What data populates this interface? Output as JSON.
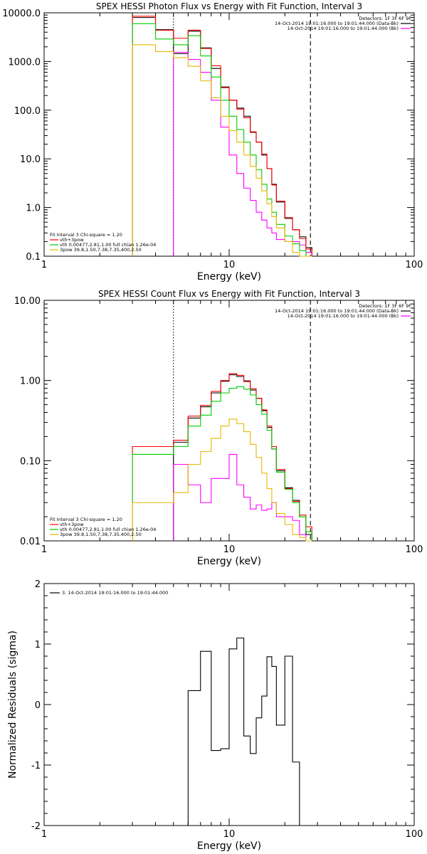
{
  "chart_data": [
    {
      "type": "line",
      "title": "SPEX HESSI Photon Flux vs Energy with Fit Function, Interval 3",
      "xlabel": "Energy (keV)",
      "ylabel": "",
      "xscale": "log",
      "yscale": "log",
      "xlim": [
        1,
        100
      ],
      "ylim": [
        0.1,
        10000
      ],
      "xticks": [
        {
          "v": 1,
          "label": "1"
        },
        {
          "v": 10,
          "label": "10"
        },
        {
          "v": 100,
          "label": "100"
        }
      ],
      "yticks": [
        {
          "v": 0.1,
          "label": "0.1"
        },
        {
          "v": 1,
          "label": "1.0"
        },
        {
          "v": 10,
          "label": "10.0"
        },
        {
          "v": 100,
          "label": "100.0"
        },
        {
          "v": 1000,
          "label": "1000.0"
        },
        {
          "v": 10000,
          "label": "10000.0"
        }
      ],
      "vlines": [
        {
          "x": 5.0,
          "style": "dotted"
        },
        {
          "x": 27.5,
          "style": "dashed"
        }
      ],
      "legend_topright": [
        "Detectors: 1F 3F 6F 9F",
        "14-Oct-2014 19:01:16.000 to 19:01:44.000 (Data-Bk)",
        "14-Oct-2014 19:01:16.000 to 19:01:44.000 (Bk)"
      ],
      "legend_bottomleft": [
        "Fit Interval 3   Chi-square = 1.20",
        "vth+3pow",
        "vth 0.00477,2.81,1.00  full chian 1.26e-04",
        "3pow 39.8,1.50,7.38,7.35,400,2.50"
      ],
      "series": [
        {
          "name": "14-Oct-2014 19:01:16.000 to 19:01:44.000 (Data-Bk)",
          "color": "#000000",
          "edges": [
            3,
            4,
            5,
            6,
            7,
            8,
            9,
            10,
            11,
            12,
            13,
            14,
            15,
            16,
            17,
            18,
            20,
            22,
            24,
            26,
            28
          ],
          "values": [
            8000,
            4500,
            1450,
            4200,
            1900,
            720,
            300,
            160,
            110,
            75,
            35,
            22,
            12,
            6.3,
            3.0,
            1.3,
            0.6,
            0.35,
            0.25,
            0.15
          ]
        },
        {
          "name": "14-Oct-2014 19:01:16.000 to 19:01:44.000 (Bk)",
          "color": "#ff00ff",
          "edges": [
            5,
            6,
            7,
            8,
            9,
            10,
            11,
            12,
            13,
            14,
            15,
            16,
            17,
            18,
            20,
            22,
            24,
            26,
            28
          ],
          "values": [
            1550,
            1100,
            600,
            160,
            45,
            12,
            5,
            2.5,
            1.4,
            0.8,
            0.55,
            0.38,
            0.3,
            0.22,
            0.2,
            0.2,
            0.17,
            0.12
          ]
        },
        {
          "name": "vth+3pow",
          "color": "#ff0000",
          "edges": [
            3,
            4,
            5,
            6,
            7,
            8,
            9,
            10,
            11,
            12,
            13,
            14,
            15,
            16,
            17,
            18,
            20,
            22,
            24,
            26,
            28
          ],
          "values": [
            8500,
            4400,
            3000,
            4400,
            1850,
            820,
            290,
            160,
            105,
            70,
            36,
            22,
            12.5,
            6.3,
            2.9,
            1.35,
            0.62,
            0.35,
            0.23,
            0.14
          ]
        },
        {
          "name": "vth 0.00477,2.81,1.00  full chian 1.26e-04",
          "color": "#00cc00",
          "edges": [
            3,
            4,
            5,
            6,
            7,
            8,
            9,
            10,
            11,
            12,
            13,
            14,
            15,
            16,
            17,
            18,
            20,
            22,
            24,
            26,
            28
          ],
          "values": [
            6000,
            2900,
            2200,
            3400,
            1300,
            480,
            160,
            75,
            40,
            22,
            12,
            6,
            3.0,
            1.5,
            0.8,
            0.45,
            0.26,
            0.18,
            0.13,
            0.1
          ]
        },
        {
          "name": "3pow 39.8,1.50,7.38,7.35,400,2.50",
          "color": "#e6b800",
          "edges": [
            3,
            4,
            5,
            6,
            7,
            8,
            9,
            10,
            11,
            12,
            13,
            14,
            15,
            16,
            17,
            18,
            20,
            22,
            24,
            26,
            28
          ],
          "values": [
            2200,
            1600,
            1200,
            800,
            400,
            180,
            75,
            38,
            22,
            12,
            7,
            4,
            2.2,
            1.2,
            0.65,
            0.38,
            0.2,
            0.12,
            0.1,
            0.1
          ]
        }
      ]
    },
    {
      "type": "line",
      "title": "SPEX HESSI Count Flux vs Energy with Fit Function, Interval 3",
      "xlabel": "Energy (keV)",
      "ylabel": "",
      "xscale": "log",
      "yscale": "log",
      "xlim": [
        1,
        100
      ],
      "ylim": [
        0.01,
        10
      ],
      "xticks": [
        {
          "v": 1,
          "label": "1"
        },
        {
          "v": 10,
          "label": "10"
        },
        {
          "v": 100,
          "label": "100"
        }
      ],
      "yticks": [
        {
          "v": 0.01,
          "label": "0.01"
        },
        {
          "v": 0.1,
          "label": "0.10"
        },
        {
          "v": 1,
          "label": "1.00"
        },
        {
          "v": 10,
          "label": "10.00"
        }
      ],
      "vlines": [
        {
          "x": 5.0,
          "style": "dotted"
        },
        {
          "x": 27.5,
          "style": "dashed"
        }
      ],
      "legend_topright": [
        "Detectors: 1F 3F 6F 9F",
        "14-Oct-2014 19:01:16.000 to 19:01:44.000 (Data-Bk)",
        "14-Oct-2014 19:01:16.000 to 19:01:44.000 (Bk)"
      ],
      "legend_bottomleft": [
        "Fit Interval 3   Chi-square = 1.20",
        "vth+3pow",
        "vth 0.00477,2.81,1.00  full chian 1.26e-04",
        "3pow 39.8,1.50,7.38,7.35,400,2.50"
      ],
      "series": [
        {
          "name": "14-Oct-2014 19:01:16.000 to 19:01:44.000 (Data-Bk)",
          "color": "#000000",
          "edges": [
            5,
            6,
            7,
            8,
            9,
            10,
            11,
            12,
            13,
            14,
            15,
            16,
            17,
            18,
            20,
            22,
            24,
            26,
            28
          ],
          "values": [
            0.17,
            0.34,
            0.47,
            0.7,
            0.98,
            1.18,
            1.12,
            0.99,
            0.76,
            0.6,
            0.42,
            0.26,
            0.14,
            0.075,
            0.046,
            0.032,
            0.02,
            0.012
          ]
        },
        {
          "name": "14-Oct-2014 19:01:16.000 to 19:01:44.000 (Bk)",
          "color": "#ff00ff",
          "edges": [
            5,
            6,
            7,
            8,
            9,
            10,
            11,
            12,
            13,
            14,
            15,
            16,
            17,
            18,
            20,
            22,
            24,
            26,
            28
          ],
          "values": [
            0.09,
            0.05,
            0.03,
            0.06,
            0.06,
            0.12,
            0.05,
            0.035,
            0.025,
            0.028,
            0.024,
            0.025,
            0.03,
            0.02,
            0.02,
            0.018,
            0.012,
            0.01
          ]
        },
        {
          "name": "vth+3pow",
          "color": "#ff0000",
          "edges": [
            3,
            5,
            6,
            7,
            8,
            9,
            10,
            11,
            12,
            13,
            14,
            15,
            16,
            17,
            18,
            20,
            22,
            24,
            26,
            28
          ],
          "values": [
            0.15,
            0.18,
            0.36,
            0.49,
            0.73,
            1.0,
            1.22,
            1.16,
            0.97,
            0.79,
            0.6,
            0.43,
            0.27,
            0.15,
            0.078,
            0.045,
            0.031,
            0.021,
            0.015
          ]
        },
        {
          "name": "vth 0.00477,2.81,1.00  full chian 1.26e-04",
          "color": "#00cc00",
          "edges": [
            3,
            5,
            6,
            7,
            8,
            9,
            10,
            11,
            12,
            13,
            14,
            15,
            16,
            17,
            18,
            20,
            22,
            24,
            26,
            28
          ],
          "values": [
            0.12,
            0.15,
            0.27,
            0.37,
            0.55,
            0.7,
            0.8,
            0.84,
            0.78,
            0.66,
            0.5,
            0.38,
            0.24,
            0.14,
            0.072,
            0.044,
            0.03,
            0.02,
            0.013
          ]
        },
        {
          "name": "3pow 39.8,1.50,7.38,7.35,400,2.50",
          "color": "#e6b800",
          "edges": [
            3,
            5,
            6,
            7,
            8,
            9,
            10,
            11,
            12,
            13,
            14,
            15,
            16,
            17,
            18,
            20,
            22,
            24,
            26,
            28
          ],
          "values": [
            0.03,
            0.04,
            0.09,
            0.13,
            0.19,
            0.27,
            0.33,
            0.29,
            0.23,
            0.16,
            0.11,
            0.07,
            0.045,
            0.03,
            0.022,
            0.016,
            0.012,
            0.011,
            0.01
          ]
        }
      ]
    },
    {
      "type": "line",
      "title": "",
      "xlabel": "Energy (keV)",
      "ylabel": "Normalized Residuals (sigma)",
      "xscale": "log",
      "yscale": "linear",
      "xlim": [
        1,
        100
      ],
      "ylim": [
        -2,
        2
      ],
      "xticks": [
        {
          "v": 1,
          "label": "1"
        },
        {
          "v": 10,
          "label": "10"
        },
        {
          "v": 100,
          "label": "100"
        }
      ],
      "yticks": [
        {
          "v": -2,
          "label": "-2"
        },
        {
          "v": -1,
          "label": "-1"
        },
        {
          "v": 0,
          "label": "0"
        },
        {
          "v": 1,
          "label": "1"
        },
        {
          "v": 2,
          "label": "2"
        }
      ],
      "vlines": [],
      "legend_topleft": [
        "3. 14-Oct-2014 19:01:16.000 to 19:01:44.000"
      ],
      "series": [
        {
          "name": "3. 14-Oct-2014 19:01:16.000 to 19:01:44.000",
          "color": "#000000",
          "edges": [
            5,
            6,
            7,
            8,
            9,
            10,
            11,
            12,
            13,
            14,
            15,
            16,
            17,
            18,
            20,
            22,
            24,
            26,
            28
          ],
          "values": [
            -2.05,
            0.23,
            0.88,
            -0.76,
            -0.73,
            0.92,
            1.1,
            -0.52,
            -0.81,
            -0.22,
            0.14,
            0.79,
            0.63,
            -0.34,
            0.8,
            -0.95,
            -2.05,
            -2.05
          ]
        }
      ]
    }
  ]
}
